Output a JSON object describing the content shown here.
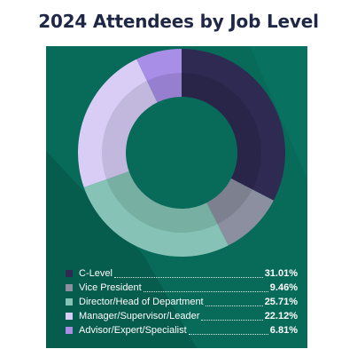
{
  "title": "2024 Attendees by Job Level",
  "colors": {
    "background": "#086b5a",
    "title": "#1f2747",
    "legend_text": "#ffffff"
  },
  "chart_data": {
    "type": "pie",
    "variant": "donut",
    "title": "2024 Attendees by Job Level",
    "categories": [
      "C-Level",
      "Vice President",
      "Director/Head of Department",
      "Manager/Supervisor/Leader",
      "Advisor/Expert/Specialist"
    ],
    "values": [
      31.01,
      9.46,
      25.71,
      22.12,
      6.81
    ],
    "value_labels": [
      "31.01%",
      "9.46%",
      "25.71%",
      "22.12%",
      "6.81%"
    ],
    "colors": [
      "#2e2a52",
      "#8c8fa0",
      "#86c3b6",
      "#d9ccf5",
      "#a98ee8"
    ],
    "legend_position": "bottom"
  }
}
